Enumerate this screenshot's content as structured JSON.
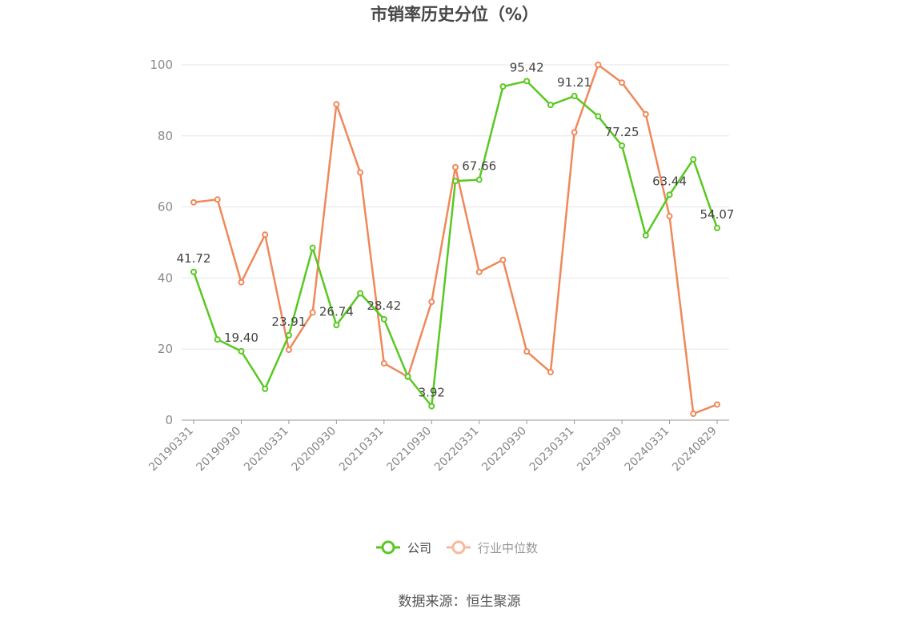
{
  "chart_data": {
    "type": "line",
    "title": "市销率历史分位（%）",
    "ylim": [
      0,
      100
    ],
    "yticks": [
      "0",
      "20",
      "40",
      "60",
      "80",
      "100"
    ],
    "x_labels": [
      "20190331",
      "20190930",
      "20200331",
      "20200930",
      "20210331",
      "20210930",
      "20220331",
      "20220930",
      "20230331",
      "20230930",
      "20240331",
      "20240829"
    ],
    "grid": true,
    "legend_position": "bottom-center",
    "series": [
      {
        "name": "公司",
        "color": "#5ac822",
        "values": [
          41.72,
          22.7,
          19.4,
          8.8,
          23.91,
          48.5,
          26.74,
          35.7,
          28.42,
          12.3,
          3.92,
          67.3,
          67.66,
          93.9,
          95.42,
          88.7,
          91.21,
          85.5,
          77.25,
          52.0,
          63.44,
          73.4,
          54.07
        ],
        "labels": [
          "41.72",
          "",
          "19.40",
          "",
          "23.91",
          "",
          "26.74",
          "",
          "28.42",
          "",
          "3.92",
          "",
          "67.66",
          "",
          "95.42",
          "",
          "91.21",
          "",
          "77.25",
          "",
          "63.44",
          "",
          "54.07"
        ]
      },
      {
        "name": "行业中位数",
        "color": "#f0885a",
        "values": [
          61.3,
          62.1,
          38.8,
          52.2,
          19.8,
          30.3,
          88.9,
          69.7,
          16.0,
          12.2,
          33.3,
          71.2,
          41.7,
          45.1,
          19.3,
          13.5,
          81.0,
          100.0,
          95.0,
          86.1,
          57.4,
          1.8,
          4.4
        ]
      }
    ]
  },
  "legend": {
    "company": "公司",
    "industry": "行业中位数"
  },
  "source_text": "数据来源：恒生聚源",
  "colors": {
    "company": "#5ac822",
    "industry": "#f0885a",
    "industry_legend": "#f6b99d",
    "grid": "#e6e6e6",
    "axis": "#999999"
  }
}
